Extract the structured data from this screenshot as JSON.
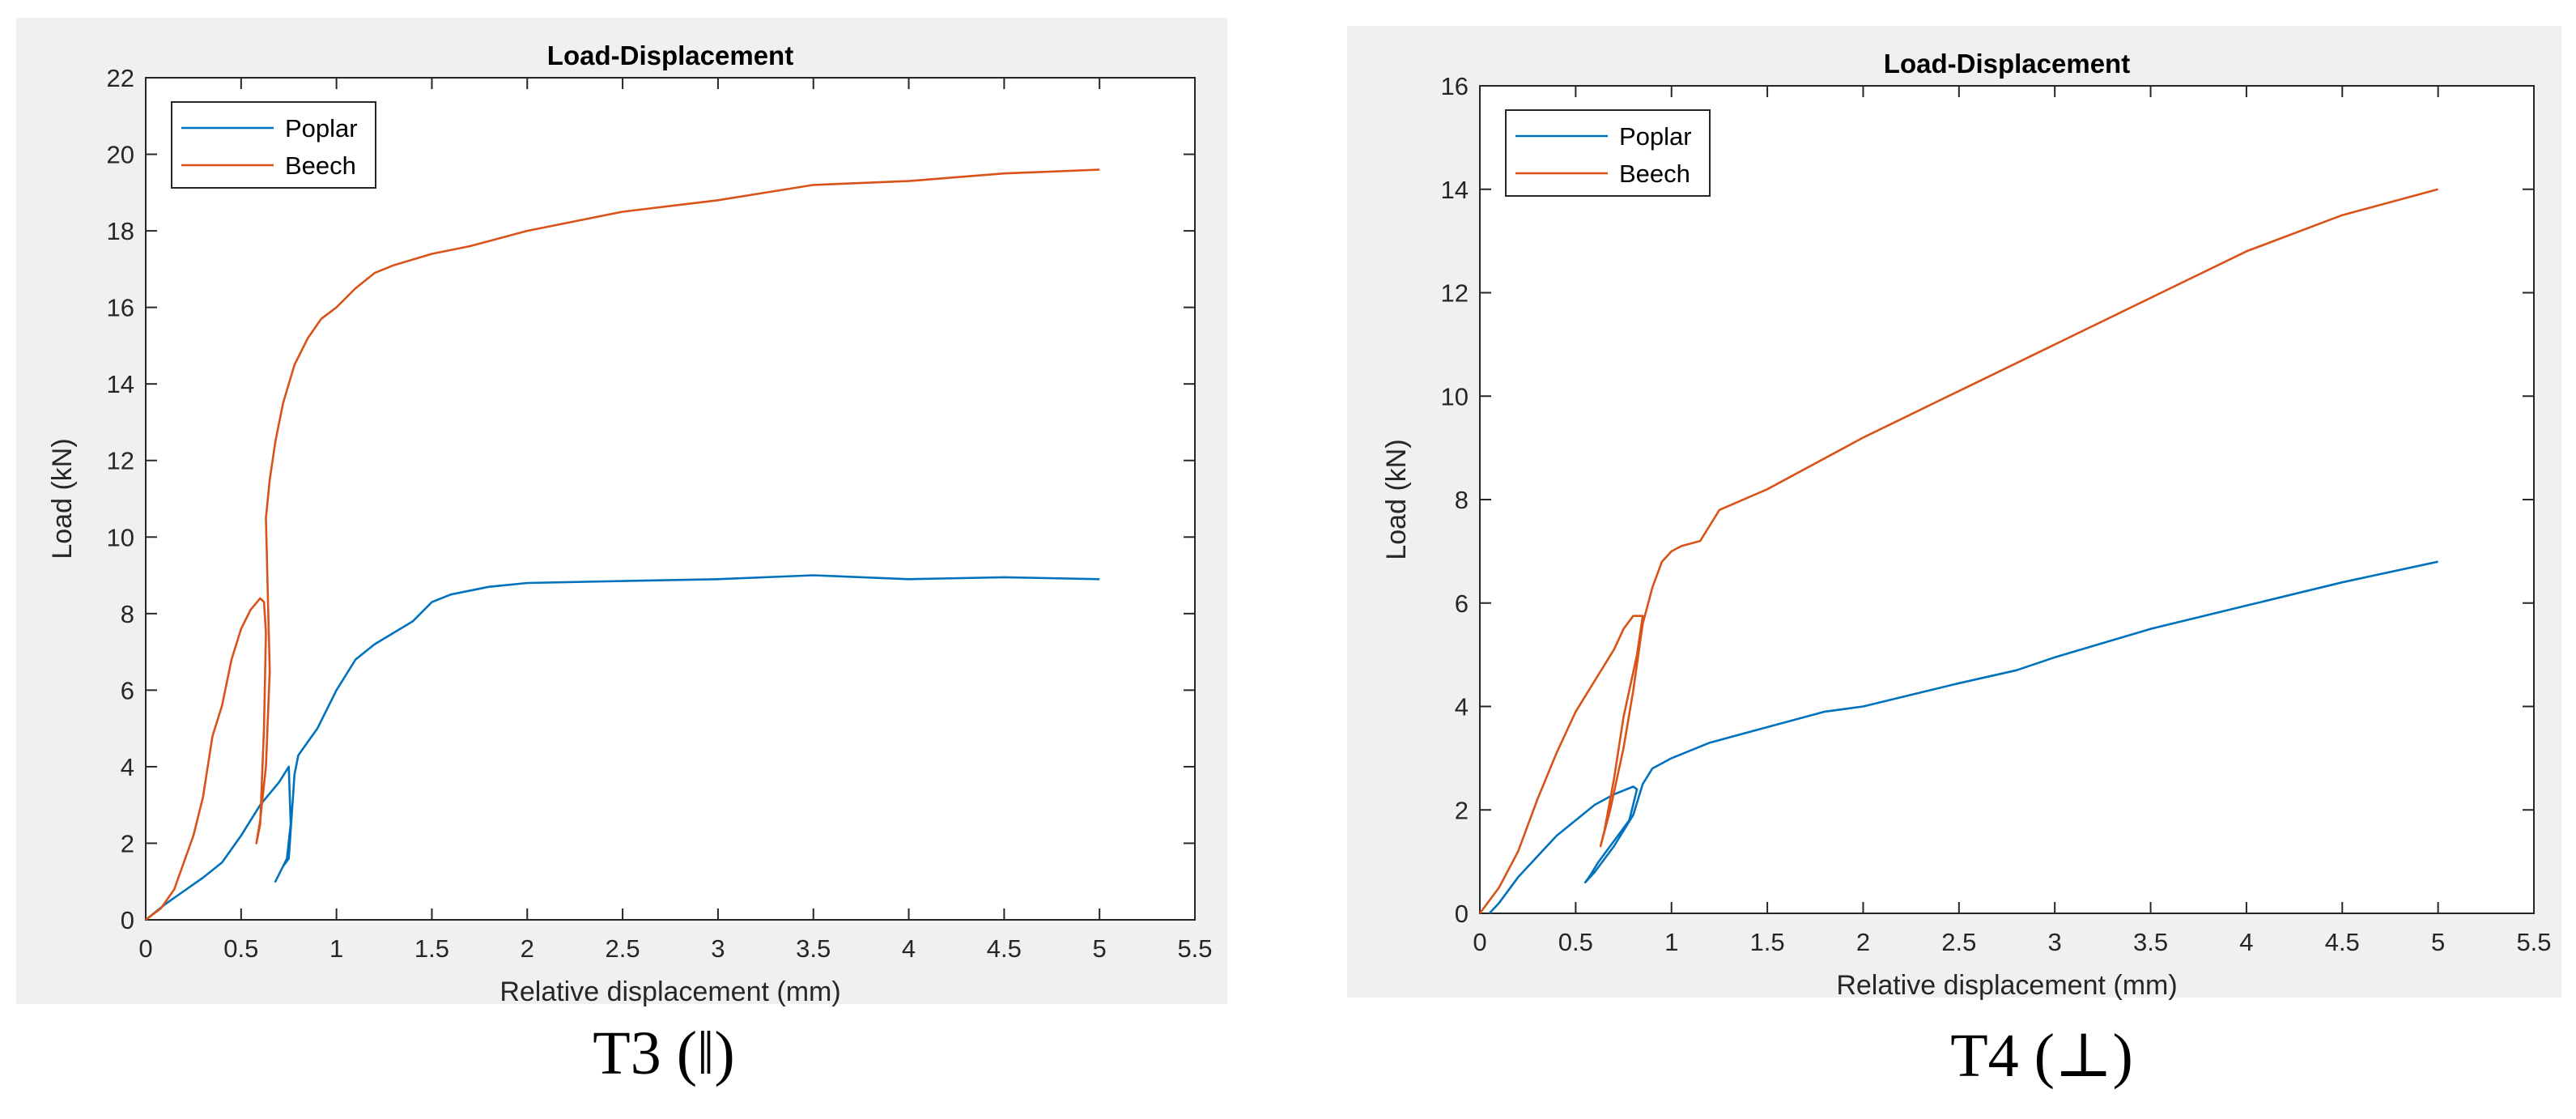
{
  "captions": {
    "left": "T3 (ǁ)",
    "right": "T4 (⊥)"
  },
  "colors": {
    "poplar": "#0072bd",
    "beech": "#d95319"
  },
  "chart_data": [
    {
      "type": "line",
      "title": "Load-Displacement",
      "xlabel": "Relative displacement (mm)",
      "ylabel": "Load (kN)",
      "xlim": [
        0,
        5.5
      ],
      "ylim": [
        0,
        22
      ],
      "xticks": [
        "0",
        "0.5",
        "1",
        "1.5",
        "2",
        "2.5",
        "3",
        "3.5",
        "4",
        "4.5",
        "5",
        "5.5"
      ],
      "yticks": [
        "0",
        "2",
        "4",
        "6",
        "8",
        "10",
        "12",
        "14",
        "16",
        "18",
        "20",
        "22"
      ],
      "legend": "top-left",
      "grid": false,
      "series": [
        {
          "name": "Poplar",
          "x": [
            0,
            0.1,
            0.2,
            0.3,
            0.4,
            0.5,
            0.6,
            0.7,
            0.75,
            0.76,
            0.74,
            0.7,
            0.68,
            0.72,
            0.75,
            0.78,
            0.8,
            0.9,
            1.0,
            1.1,
            1.2,
            1.3,
            1.4,
            1.5,
            1.6,
            1.8,
            2.0,
            2.5,
            3.0,
            3.5,
            4.0,
            4.5,
            5.0
          ],
          "y": [
            0,
            0.4,
            0.75,
            1.1,
            1.5,
            2.2,
            3.0,
            3.6,
            4.0,
            2.5,
            1.6,
            1.2,
            1.0,
            1.4,
            1.6,
            3.8,
            4.3,
            5.0,
            6.0,
            6.8,
            7.2,
            7.5,
            7.8,
            8.3,
            8.5,
            8.7,
            8.8,
            8.85,
            8.9,
            9.0,
            8.9,
            8.95,
            8.9
          ]
        },
        {
          "name": "Beech",
          "x": [
            0,
            0.08,
            0.15,
            0.2,
            0.25,
            0.3,
            0.35,
            0.4,
            0.45,
            0.5,
            0.55,
            0.6,
            0.62,
            0.63,
            0.62,
            0.6,
            0.58,
            0.6,
            0.63,
            0.65,
            0.64,
            0.63,
            0.65,
            0.68,
            0.72,
            0.78,
            0.85,
            0.92,
            1.0,
            1.1,
            1.2,
            1.3,
            1.5,
            1.7,
            2.0,
            2.5,
            3.0,
            3.5,
            4.0,
            4.5,
            5.0
          ],
          "y": [
            0,
            0.3,
            0.8,
            1.5,
            2.2,
            3.2,
            4.8,
            5.6,
            6.8,
            7.6,
            8.1,
            8.4,
            8.3,
            7.5,
            5.0,
            2.5,
            2.0,
            2.6,
            4.0,
            6.5,
            8.5,
            10.5,
            11.5,
            12.5,
            13.5,
            14.5,
            15.2,
            15.7,
            16.0,
            16.5,
            16.9,
            17.1,
            17.4,
            17.6,
            18.0,
            18.5,
            18.8,
            19.2,
            19.3,
            19.5,
            19.6
          ]
        }
      ]
    },
    {
      "type": "line",
      "title": "Load-Displacement",
      "xlabel": "Relative displacement (mm)",
      "ylabel": "Load (kN)",
      "xlim": [
        0,
        5.5
      ],
      "ylim": [
        0,
        16
      ],
      "xticks": [
        "0",
        "0.5",
        "1",
        "1.5",
        "2",
        "2.5",
        "3",
        "3.5",
        "4",
        "4.5",
        "5",
        "5.5"
      ],
      "yticks": [
        "0",
        "2",
        "4",
        "6",
        "8",
        "10",
        "12",
        "14",
        "16"
      ],
      "legend": "top-left",
      "grid": false,
      "series": [
        {
          "name": "Poplar",
          "x": [
            0.05,
            0.1,
            0.2,
            0.3,
            0.4,
            0.5,
            0.6,
            0.7,
            0.8,
            0.82,
            0.78,
            0.7,
            0.62,
            0.57,
            0.55,
            0.6,
            0.7,
            0.8,
            0.85,
            0.9,
            1.0,
            1.2,
            1.5,
            1.8,
            2.0,
            2.5,
            2.8,
            3.0,
            3.5,
            4.0,
            4.5,
            5.0
          ],
          "y": [
            0,
            0.2,
            0.7,
            1.1,
            1.5,
            1.8,
            2.1,
            2.3,
            2.45,
            2.4,
            1.8,
            1.4,
            1.0,
            0.7,
            0.6,
            0.8,
            1.3,
            1.9,
            2.5,
            2.8,
            3.0,
            3.3,
            3.6,
            3.9,
            4.0,
            4.45,
            4.7,
            4.95,
            5.5,
            5.95,
            6.4,
            6.8
          ]
        },
        {
          "name": "Beech",
          "x": [
            0,
            0.1,
            0.2,
            0.3,
            0.4,
            0.5,
            0.6,
            0.7,
            0.75,
            0.8,
            0.85,
            0.82,
            0.75,
            0.7,
            0.65,
            0.63,
            0.68,
            0.75,
            0.8,
            0.85,
            0.9,
            0.95,
            1.0,
            1.05,
            1.15,
            1.25,
            1.5,
            2.0,
            2.5,
            3.0,
            3.5,
            4.0,
            4.5,
            5.0
          ],
          "y": [
            0,
            0.5,
            1.2,
            2.2,
            3.1,
            3.9,
            4.5,
            5.1,
            5.5,
            5.75,
            5.75,
            5.0,
            3.8,
            2.6,
            1.6,
            1.3,
            2.0,
            3.2,
            4.3,
            5.6,
            6.3,
            6.8,
            7.0,
            7.1,
            7.2,
            7.8,
            8.2,
            9.2,
            10.1,
            11.0,
            11.9,
            12.8,
            13.5,
            14.0
          ]
        }
      ]
    }
  ]
}
